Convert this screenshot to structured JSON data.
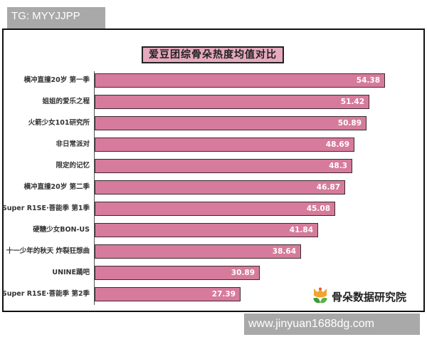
{
  "watermarks": {
    "top_left": "TG: MYYJJPP",
    "bottom_right": "www.jinyuan1688dg.com"
  },
  "logo": {
    "icon": "tulip-leaf-logo-icon",
    "text": "骨朵数据研究院"
  },
  "colors": {
    "bar": "#d67b9b",
    "title_bg": "#e7a9bd",
    "watermark_bg": "#a9a9a9"
  },
  "chart_data": {
    "type": "bar",
    "orientation": "horizontal",
    "title": "爱豆团综骨朵热度均值对比",
    "xlabel": "",
    "ylabel": "",
    "grid": false,
    "legend": null,
    "categories": [
      "横冲直撞20岁 第一季",
      "姐姐的爱乐之程",
      "火箭少女101研究所",
      "非日常派对",
      "限定的记忆",
      "横冲直撞20岁 第二季",
      "Super R1SE·菩能季 第1季",
      "硬糖少女BON-US",
      "十一少年的秋天 炸裂狂想曲",
      "UNINE踊吧",
      "Super R1SE·菩能季 第2季"
    ],
    "values": [
      54.38,
      51.42,
      50.89,
      48.69,
      48.3,
      46.87,
      45.08,
      41.84,
      38.64,
      30.89,
      27.39
    ],
    "value_labels": [
      "54.38",
      "51.42",
      "50.89",
      "48.69",
      "48.3",
      "46.87",
      "45.08",
      "41.84",
      "38.64",
      "30.89",
      "27.39"
    ]
  }
}
